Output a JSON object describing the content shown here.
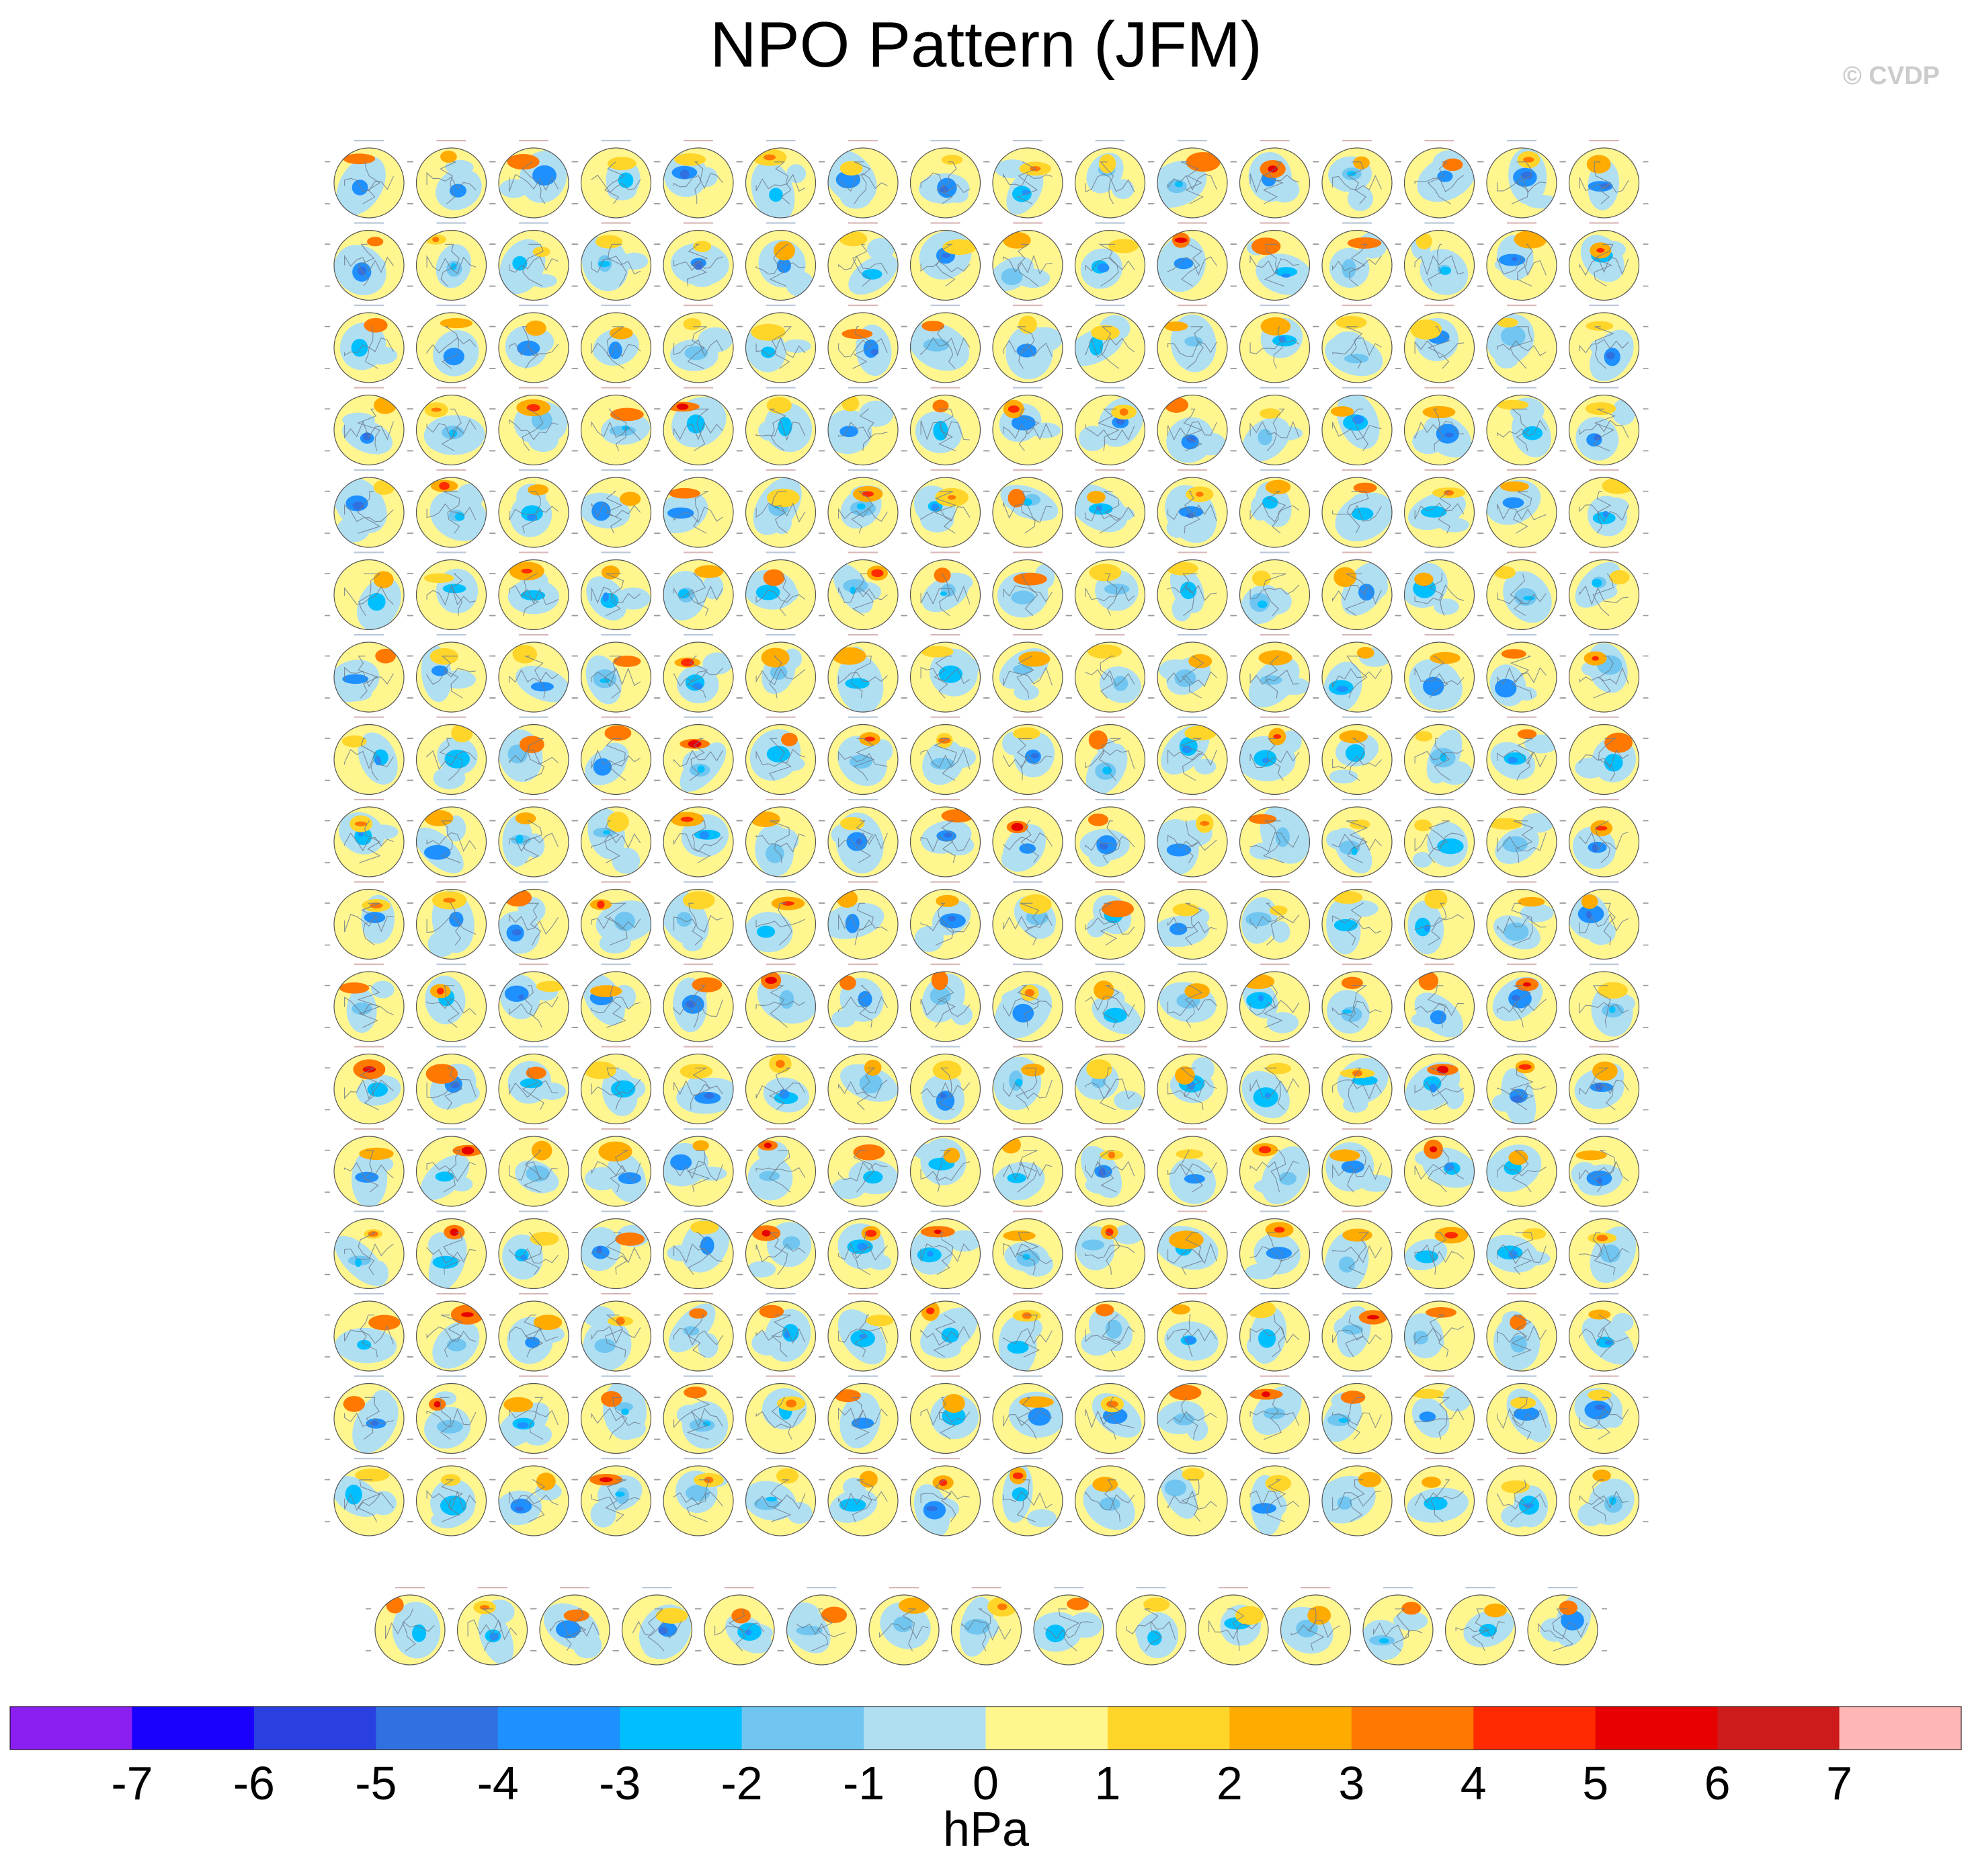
{
  "figure": {
    "title": "NPO Pattern (JFM)",
    "copyright": "© CVDP"
  },
  "chart_data": {
    "type": "heatmap",
    "title": "NPO Pattern (JFM)",
    "description_kind": "grid of polar stereographic sea-level-pressure regression maps (Northern Hemisphere), one per model member",
    "panel_layout": {
      "rows_full": 17,
      "panels_per_full_row": 16,
      "last_row_panels": 15,
      "total_panels": 287
    },
    "colorbar": {
      "label": "hPa",
      "ticks": [
        "-7",
        "-6",
        "-5",
        "-4",
        "-3",
        "-2",
        "-1",
        "0",
        "1",
        "2",
        "3",
        "4",
        "5",
        "6",
        "7"
      ],
      "colors": [
        "#8b1ef0",
        "#1a00ff",
        "#2a3fe0",
        "#3070e0",
        "#1e90ff",
        "#00bfff",
        "#70c6f0",
        "#b0dff2",
        "#fff68f",
        "#ffd52a",
        "#ffab00",
        "#ff7800",
        "#ff2a00",
        "#e60000",
        "#cd1a1a",
        "#ffb6b6"
      ]
    }
  }
}
